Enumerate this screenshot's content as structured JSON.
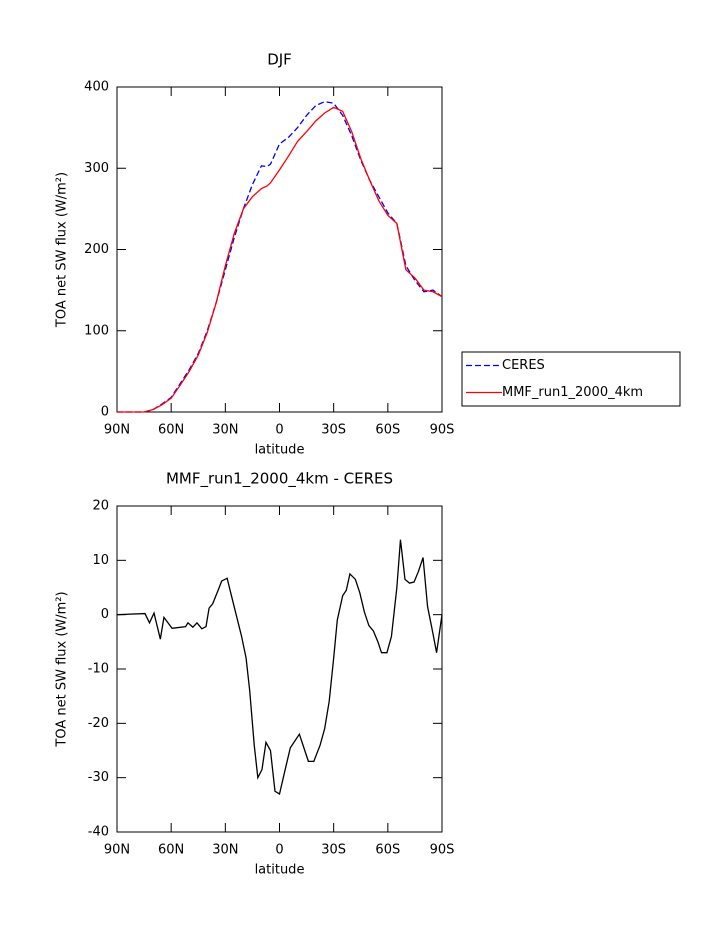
{
  "chart_data": [
    {
      "type": "line",
      "title": "DJF",
      "xlabel": "latitude",
      "ylabel": "TOA net SW flux (W/m²)",
      "x": [
        90,
        85,
        80,
        75,
        70,
        65,
        60,
        55,
        50,
        45,
        40,
        35,
        30,
        25,
        20,
        15,
        10,
        7,
        5,
        0,
        -5,
        -10,
        -15,
        -20,
        -25,
        -30,
        -35,
        -40,
        -45,
        -50,
        -55,
        -60,
        -65,
        -70,
        -75,
        -80,
        -85,
        -90
      ],
      "series": [
        {
          "name": "CERES",
          "color": "#0000ff",
          "linestyle": "dashed",
          "values": [
            0,
            0,
            0,
            0,
            3,
            10,
            18,
            35,
            52,
            72,
            100,
            135,
            175,
            215,
            250,
            280,
            303,
            302,
            305,
            330,
            338,
            350,
            365,
            377,
            382,
            380,
            365,
            340,
            310,
            285,
            265,
            245,
            232,
            180,
            162,
            148,
            150,
            142
          ]
        },
        {
          "name": "MMF_run1_2000_4km",
          "color": "#ff0000",
          "linestyle": "solid",
          "values": [
            0,
            0,
            0,
            0,
            3,
            9,
            17,
            33,
            50,
            70,
            98,
            135,
            180,
            220,
            250,
            265,
            275,
            278,
            282,
            298,
            315,
            333,
            345,
            358,
            368,
            375,
            370,
            345,
            312,
            285,
            260,
            242,
            232,
            175,
            165,
            150,
            148,
            142
          ]
        }
      ],
      "xlim": [
        90,
        -90
      ],
      "xticks": [
        {
          "value": 90,
          "label": "90N"
        },
        {
          "value": 60,
          "label": "60N"
        },
        {
          "value": 30,
          "label": "30N"
        },
        0,
        {
          "value": -30,
          "label": "30S"
        },
        {
          "value": -60,
          "label": "60S"
        },
        {
          "value": -90,
          "label": "90S"
        }
      ],
      "ylim": [
        0,
        400
      ],
      "yticks": [
        0,
        100,
        200,
        300,
        400
      ],
      "legend": "outside-right"
    },
    {
      "type": "line",
      "title": "MMF_run1_2000_4km - CERES",
      "xlabel": "latitude",
      "ylabel": "TOA net SW flux (W/m²)",
      "x": [
        90,
        74.5,
        72,
        69.5,
        66,
        64,
        59.5,
        52,
        50.7,
        48,
        45.7,
        43,
        40.7,
        39,
        37,
        34,
        32,
        29,
        27,
        24,
        21,
        18.5,
        16.5,
        14,
        12,
        9.7,
        7.5,
        5,
        2.5,
        0,
        -3.5,
        -6,
        -9,
        -11,
        -14,
        -16,
        -19,
        -22.5,
        -25,
        -27.5,
        -30,
        -32,
        -35,
        -37,
        -39,
        -42,
        -44.5,
        -47,
        -49.5,
        -52,
        -54.5,
        -56.5,
        -59.5,
        -62,
        -65,
        -67,
        -69.5,
        -72,
        -74.5,
        -77,
        -79.5,
        -82,
        -85,
        -87,
        -90
      ],
      "series": [
        {
          "name": "MMF_run1_2000_4km - CERES",
          "color": "#000000",
          "linestyle": "solid",
          "values": [
            0,
            0.2,
            -1.5,
            0.3,
            -4.5,
            -0.5,
            -2.5,
            -2.2,
            -1.5,
            -2.3,
            -1.5,
            -2.6,
            -2.2,
            1.2,
            2,
            4.5,
            6.2,
            6.7,
            4,
            0,
            -4,
            -8,
            -14,
            -24,
            -30,
            -28.5,
            -23.5,
            -25,
            -32.5,
            -33,
            -28,
            -24.5,
            -23,
            -22,
            -25,
            -27,
            -27,
            -24,
            -21,
            -16,
            -8,
            -1,
            3.5,
            4.5,
            7.5,
            6.5,
            4,
            0.5,
            -2,
            -3,
            -5,
            -7,
            -7,
            -4,
            5,
            13.8,
            6.5,
            5.8,
            6,
            8,
            10.5,
            1.5,
            -3.5,
            -7,
            0
          ]
        }
      ],
      "xlim": [
        90,
        -90
      ],
      "xticks": [
        {
          "value": 90,
          "label": "90N"
        },
        {
          "value": 60,
          "label": "60N"
        },
        {
          "value": 30,
          "label": "30N"
        },
        0,
        {
          "value": -30,
          "label": "30S"
        },
        {
          "value": -60,
          "label": "60S"
        },
        {
          "value": -90,
          "label": "90S"
        }
      ],
      "ylim": [
        -40,
        20
      ],
      "yticks": [
        -40,
        -30,
        -20,
        -10,
        0,
        10,
        20
      ]
    }
  ]
}
